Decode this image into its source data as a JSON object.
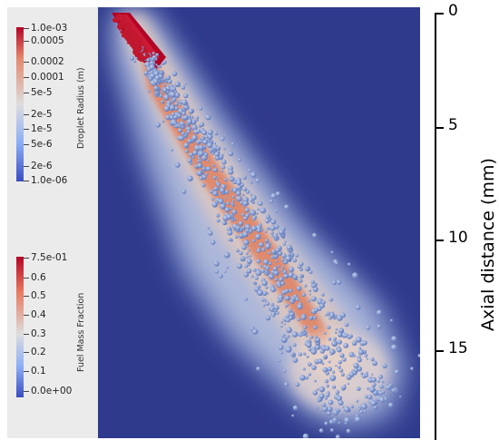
{
  "droplet_colorbar": {
    "title": "Droplet Radius (m)",
    "ticks": [
      "1.0e-03",
      "0.0005",
      "0.0002",
      "0.0001",
      "5e-5",
      "2e-5",
      "1e-5",
      "5e-6",
      "2e-6",
      "1.0e-06"
    ],
    "colors": {
      "high": "#b40426",
      "mid": "#dddddd",
      "low": "#3b4cc0"
    }
  },
  "fuel_colorbar": {
    "title": "Fuel Mass Fraction",
    "ticks": [
      "7.5e-01",
      "0.6",
      "0.5",
      "0.4",
      "0.3",
      "0.2",
      "0.1",
      "0.0e+00"
    ],
    "colors": {
      "high": "#b40426",
      "mid": "#dddddd",
      "low": "#3b4cc0"
    }
  },
  "axis": {
    "title": "Axial distance (mm)",
    "ticks": [
      "0",
      "5",
      "10",
      "15"
    ]
  },
  "scene": {
    "background_color": "#2f3a8c"
  }
}
